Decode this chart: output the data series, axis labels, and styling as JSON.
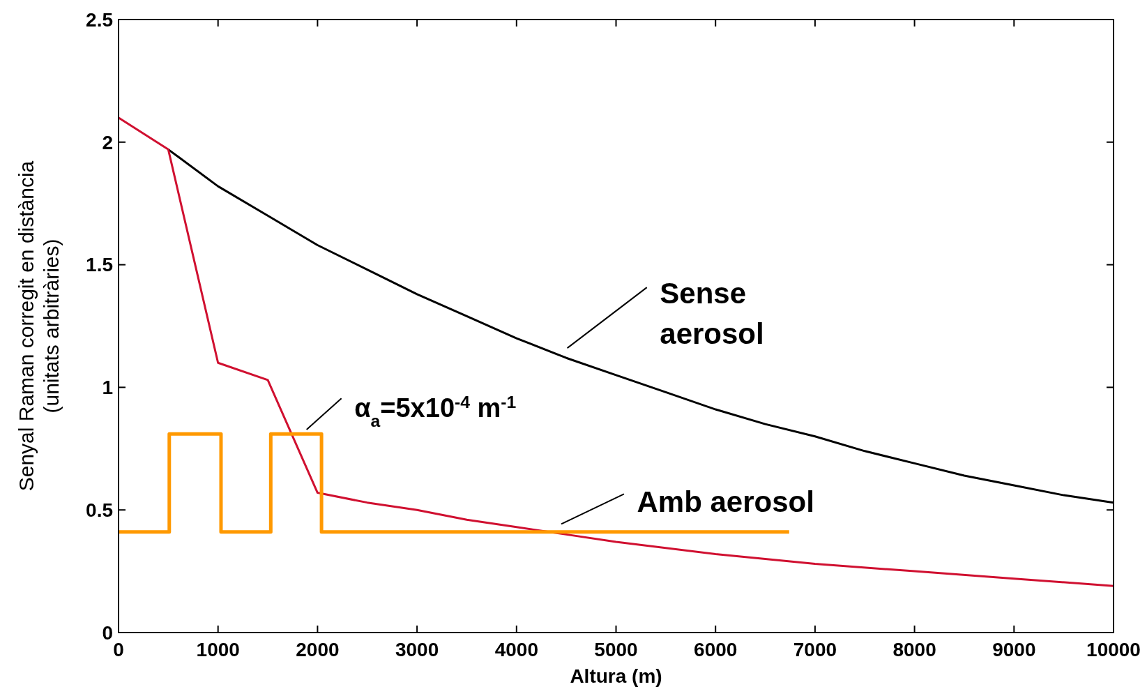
{
  "chart_data": {
    "type": "line",
    "xlabel": "Altura (m)",
    "ylabel": "Senyal Raman corregit en distància\n(unitats arbitràries)",
    "xlim": [
      0,
      10000
    ],
    "xticks": [
      0,
      1000,
      2000,
      3000,
      4000,
      5000,
      6000,
      7000,
      8000,
      9000,
      10000
    ],
    "ylim": [
      0,
      2.5
    ],
    "yticks": [
      0,
      0.5,
      1,
      1.5,
      2,
      2.5
    ],
    "grid": false,
    "marker": "none",
    "series": [
      {
        "color": "#000000",
        "x": [
          500,
          1000,
          1500,
          2000,
          2500,
          3000,
          3500,
          4000,
          4500,
          5000,
          5500,
          6000,
          6500,
          7000,
          7500,
          8000,
          8500,
          9000,
          9500,
          10000
        ],
        "values": [
          1.97,
          1.82,
          1.7,
          1.58,
          1.48,
          1.38,
          1.29,
          1.2,
          1.12,
          1.05,
          0.98,
          0.91,
          0.85,
          0.8,
          0.74,
          0.69,
          0.64,
          0.6,
          0.56,
          0.53
        ]
      },
      {
        "color": "#d01030",
        "x": [
          0,
          500,
          1000,
          1500,
          2000,
          2500,
          3000,
          3500,
          4000,
          4500,
          5000,
          6000,
          7000,
          8000,
          9000,
          10000
        ],
        "values": [
          2.1,
          1.97,
          1.1,
          1.03,
          0.57,
          0.53,
          0.5,
          0.46,
          0.43,
          0.4,
          0.37,
          0.32,
          0.28,
          0.25,
          0.22,
          0.19
        ]
      },
      {
        "color": "#ff9900",
        "x": [
          0,
          510,
          510,
          1030,
          1030,
          1530,
          1530,
          2040,
          2040,
          6740
        ],
        "values": [
          0.41,
          0.41,
          0.81,
          0.81,
          0.41,
          0.41,
          0.81,
          0.81,
          0.41,
          0.41
        ]
      }
    ],
    "annotations": [
      "Sense aerosol",
      "α$_{a}$=5x10$^{-4}$ m$^{-1}$",
      "Amb aerosol"
    ]
  }
}
